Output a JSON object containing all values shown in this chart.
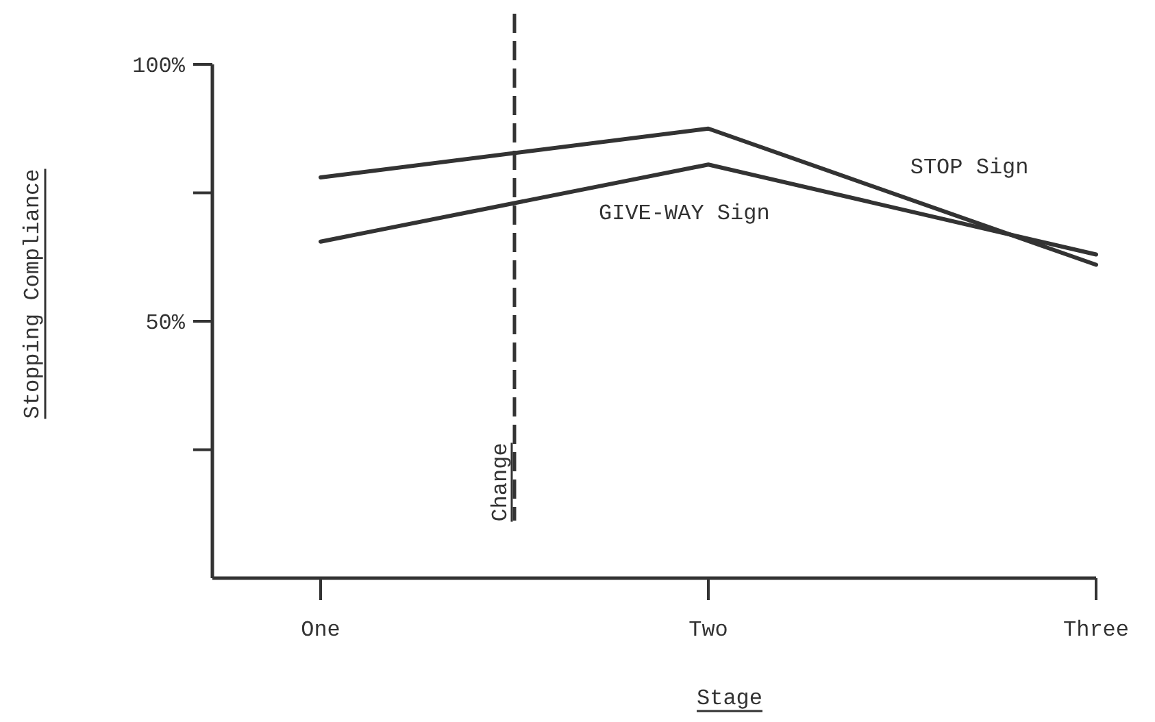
{
  "chart_data": {
    "type": "line",
    "xlabel": "Stage",
    "ylabel": "Stopping Compliance",
    "categories": [
      "One",
      "Two",
      "Three"
    ],
    "ylim": [
      0,
      100
    ],
    "yticks": [
      {
        "value": 25,
        "label": null
      },
      {
        "value": 50,
        "label": "50%"
      },
      {
        "value": 75,
        "label": null
      },
      {
        "value": 100,
        "label": "100%"
      }
    ],
    "series": [
      {
        "name": "STOP Sign",
        "color": "#333333",
        "values": [
          78,
          87.5,
          61
        ]
      },
      {
        "name": "GIVE-WAY Sign",
        "color": "#333333",
        "values": [
          65.5,
          80.5,
          63
        ]
      }
    ],
    "annotations": [
      "Change"
    ],
    "grid": false,
    "legend": false,
    "marker": "none",
    "line_style": "solid"
  }
}
